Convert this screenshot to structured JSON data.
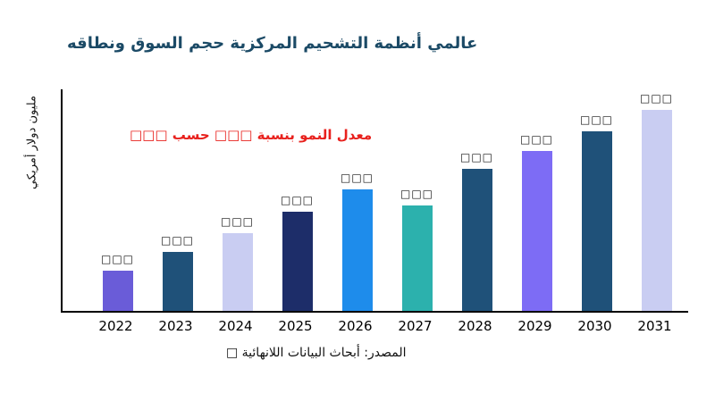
{
  "chart_data": {
    "type": "bar",
    "title": "عالمي أنظمة التشحيم المركزية حجم السوق ونطاقه",
    "title_color": "#1b4a66",
    "ylabel": "مليون دولار أمريكي",
    "xlabel": "",
    "annotation": "معدل النمو بنسبة □□□ حسب □□□",
    "annotation_color": "#e8211d",
    "source": "المصدر: أبحاث البيانات اللانهائية □",
    "categories": [
      "2022",
      "2023",
      "2024",
      "2025",
      "2026",
      "2027",
      "2028",
      "2029",
      "2030",
      "2031"
    ],
    "values": [
      45,
      67,
      88,
      112,
      137,
      119,
      160,
      180,
      203,
      227
    ],
    "values_note": "estimated from bar pixel heights; numeric data labels render as unreadable tofu boxes",
    "ylim": [
      0,
      250
    ],
    "grid": false,
    "legend": "none",
    "bar_labels": [
      "□□□",
      "□□□",
      "□□□",
      "□□□",
      "□□□",
      "□□□",
      "□□□",
      "□□□",
      "□□□",
      "□□□"
    ],
    "bar_colors": [
      "#6a5cd8",
      "#1f5179",
      "#c9cdf2",
      "#1d2d69",
      "#1e8ceb",
      "#2cb1ad",
      "#1f5179",
      "#7d6cf5",
      "#1f5179",
      "#c9cdf2"
    ]
  }
}
